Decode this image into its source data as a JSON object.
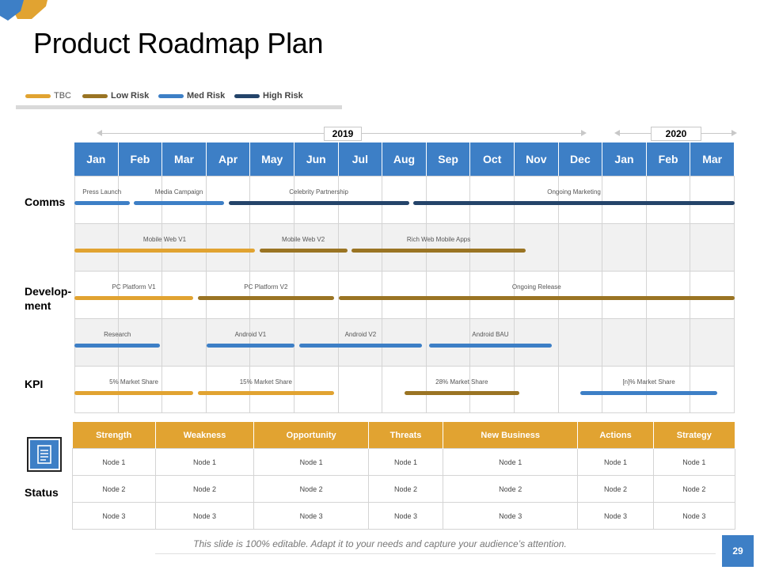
{
  "title": "Product Roadmap Plan",
  "colors": {
    "tbc": "#e1a331",
    "low": "#9a7423",
    "med": "#3d7fc6",
    "high": "#24446a",
    "header": "#3d7fc6",
    "status_header": "#e1a331"
  },
  "legend": [
    {
      "label": "TBC",
      "bold": false
    },
    {
      "label": "Low Risk",
      "bold": true
    },
    {
      "label": "Med Risk",
      "bold": true
    },
    {
      "label": "High Risk",
      "bold": true
    }
  ],
  "years": [
    "2019",
    "2020"
  ],
  "months": [
    "Jan",
    "Feb",
    "Mar",
    "Apr",
    "May",
    "Jun",
    "Jul",
    "Aug",
    "Sep",
    "Oct",
    "Nov",
    "Dec",
    "Jan",
    "Feb",
    "Mar"
  ],
  "categories": {
    "comms": "Comms",
    "dev": "Develop-\nment",
    "kpi": "KPI",
    "status": "Status"
  },
  "rows": [
    {
      "items": [
        {
          "label": "Press Launch",
          "risk": "med",
          "start": 0.0,
          "end": 1.25
        },
        {
          "label": "Media Campaign",
          "risk": "med",
          "start": 1.35,
          "end": 3.4
        },
        {
          "label": "Celebrity Partnership",
          "risk": "high",
          "start": 3.5,
          "end": 7.6
        },
        {
          "label": "Ongoing  Marketing",
          "risk": "high",
          "start": 7.7,
          "end": 15.0
        }
      ]
    },
    {
      "items": [
        {
          "label": "Mobile Web V1",
          "risk": "tbc",
          "start": 0.0,
          "end": 4.1
        },
        {
          "label": "Mobile Web V2",
          "risk": "low",
          "start": 4.2,
          "end": 6.2
        },
        {
          "label": "Rich Web Mobile Apps",
          "risk": "low",
          "start": 6.3,
          "end": 10.25
        }
      ]
    },
    {
      "items": [
        {
          "label": "PC Platform V1",
          "risk": "tbc",
          "start": 0.0,
          "end": 2.7
        },
        {
          "label": "PC Platform V2",
          "risk": "low",
          "start": 2.8,
          "end": 5.9
        },
        {
          "label": "Ongoing  Release",
          "risk": "low",
          "start": 6.0,
          "end": 15.0
        }
      ]
    },
    {
      "items": [
        {
          "label": "Research",
          "risk": "med",
          "start": 0.0,
          "end": 1.95
        },
        {
          "label": "Android V1",
          "risk": "med",
          "start": 3.0,
          "end": 5.0
        },
        {
          "label": "Android V2",
          "risk": "med",
          "start": 5.1,
          "end": 7.9
        },
        {
          "label": "Android BAU",
          "risk": "med",
          "start": 8.05,
          "end": 10.85
        }
      ]
    },
    {
      "items": [
        {
          "label": "5% Market Share",
          "risk": "tbc",
          "start": 0.0,
          "end": 2.7
        },
        {
          "label": "15% Market Share",
          "risk": "tbc",
          "start": 2.8,
          "end": 5.9
        },
        {
          "label": "28% Market Share",
          "risk": "low",
          "start": 7.5,
          "end": 10.1
        },
        {
          "label": "[n]% Market Share",
          "risk": "med",
          "start": 11.5,
          "end": 14.6
        }
      ]
    }
  ],
  "status_table": {
    "headers": [
      "Strength",
      "Weakness",
      "Opportunity",
      "Threats",
      "New Business",
      "Actions",
      "Strategy"
    ],
    "rows": [
      [
        "Node 1",
        "Node 1",
        "Node 1",
        "Node 1",
        "Node 1",
        "Node 1",
        "Node 1"
      ],
      [
        "Node 2",
        "Node 2",
        "Node 2",
        "Node 2",
        "Node 2",
        "Node 2",
        "Node 2"
      ],
      [
        "Node 3",
        "Node 3",
        "Node 3",
        "Node 3",
        "Node 3",
        "Node 3",
        "Node 3"
      ]
    ]
  },
  "footer": "This slide is 100% editable. Adapt it to your needs and capture your audience’s attention.",
  "page_number": "29",
  "icons": {
    "document": "document-icon",
    "corner": "corner-decoration"
  }
}
